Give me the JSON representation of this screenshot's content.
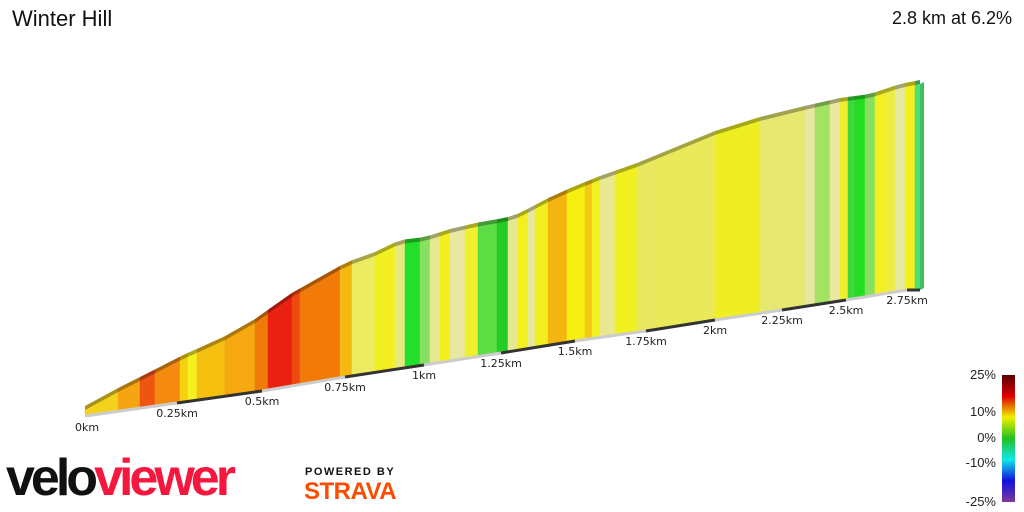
{
  "title": "Winter Hill",
  "stats": "2.8 km at 6.2%",
  "chart_data": {
    "type": "area",
    "title": "Winter Hill",
    "x_ticks": [
      "0km",
      "0.25km",
      "0.5km",
      "0.75km",
      "1km",
      "1.25km",
      "1.5km",
      "1.75km",
      "2km",
      "2.25km",
      "2.5km",
      "2.75km"
    ],
    "distance_km": 2.8,
    "average_gradient_pct": 6.2,
    "segment_colors": [
      "#f2d21c",
      "#f5a512",
      "#ee5510",
      "#f58a10",
      "#f5d010",
      "#f5f020",
      "#f5c010",
      "#f5a810",
      "#f07a08",
      "#ea2010",
      "#ee4a10",
      "#f27a08",
      "#f5b810",
      "#ecec60",
      "#f2f020",
      "#e8e880",
      "#22e02a",
      "#88e060",
      "#e6e890",
      "#f2f020",
      "#e8e8a0",
      "#f0f030",
      "#5ddd44",
      "#22cc22",
      "#e6e890",
      "#f2f020",
      "#e6e8a0",
      "#f2ef20",
      "#f5b510",
      "#f5f010",
      "#f5c818",
      "#f2f020",
      "#e8e890",
      "#f2f020",
      "#e8e860",
      "#e9e95a",
      "#eeee22",
      "#e6e870",
      "#e6e8a0",
      "#a4e262",
      "#e8e8a0",
      "#f0ee30",
      "#3dd83a",
      "#22dd22",
      "#88e060",
      "#f2f020",
      "#eeee40",
      "#e6e8a0",
      "#f2f020",
      "#55dd77"
    ],
    "legend": {
      "labels": [
        "25%",
        "10%",
        "0%",
        "-10%",
        "-25%"
      ],
      "colors": [
        "#5a0000",
        "#e00000",
        "#f0f000",
        "#20c020",
        "#10e8e8",
        "#1010e0",
        "#7a3a9a"
      ]
    }
  },
  "branding": {
    "logo_velo": "velo",
    "logo_viewer": "viewer",
    "powered_by": "POWERED BY",
    "strava": "STRAVA"
  }
}
